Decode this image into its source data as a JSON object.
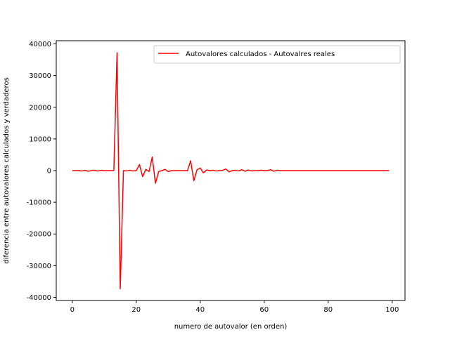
{
  "chart_data": {
    "type": "line",
    "title": "",
    "xlabel": "numero de autovalor (en orden)",
    "ylabel": "diferencia entre autovalores calculados y verdaderos",
    "xlim": [
      -5,
      104
    ],
    "ylim": [
      -41000,
      41000
    ],
    "xticks": [
      0,
      20,
      40,
      60,
      80,
      100
    ],
    "yticks": [
      -40000,
      -30000,
      -20000,
      -10000,
      0,
      10000,
      20000,
      30000,
      40000
    ],
    "grid": false,
    "legend_position": "top-right",
    "series": [
      {
        "name": "Autovalores calculados - Autovalres reales",
        "color": "#ff0000",
        "x": [
          0,
          1,
          2,
          3,
          4,
          5,
          6,
          7,
          8,
          9,
          10,
          11,
          12,
          13,
          14,
          15,
          16,
          17,
          18,
          19,
          20,
          21,
          22,
          23,
          24,
          25,
          26,
          27,
          28,
          29,
          30,
          31,
          32,
          33,
          34,
          35,
          36,
          37,
          38,
          39,
          40,
          41,
          42,
          43,
          44,
          45,
          46,
          47,
          48,
          49,
          50,
          51,
          52,
          53,
          54,
          55,
          56,
          57,
          58,
          59,
          60,
          61,
          62,
          63,
          64,
          65,
          66,
          67,
          68,
          69,
          70,
          71,
          72,
          73,
          74,
          75,
          76,
          77,
          78,
          79,
          80,
          81,
          82,
          83,
          84,
          85,
          86,
          87,
          88,
          89,
          90,
          91,
          92,
          93,
          94,
          95,
          96,
          97,
          98,
          99
        ],
        "y": [
          0,
          10,
          0,
          -100,
          100,
          -200,
          0,
          150,
          -150,
          100,
          0,
          0,
          0,
          0,
          37200,
          -37300,
          0,
          -100,
          100,
          -100,
          0,
          1900,
          -1900,
          400,
          -300,
          4300,
          -4000,
          -300,
          0,
          400,
          -300,
          0,
          0,
          0,
          0,
          0,
          0,
          3100,
          -3200,
          300,
          800,
          -700,
          200,
          0,
          100,
          -100,
          0,
          100,
          500,
          -400,
          0,
          100,
          -100,
          300,
          -200,
          200,
          -100,
          0,
          0,
          100,
          0,
          0,
          300,
          -200,
          100,
          0,
          0,
          0,
          0,
          0,
          0,
          0,
          0,
          0,
          0,
          0,
          0,
          0,
          0,
          0,
          0,
          0,
          0,
          0,
          0,
          0,
          0,
          0,
          0,
          0,
          0,
          0,
          0,
          0,
          0,
          0,
          0,
          0,
          0,
          0
        ]
      }
    ]
  }
}
